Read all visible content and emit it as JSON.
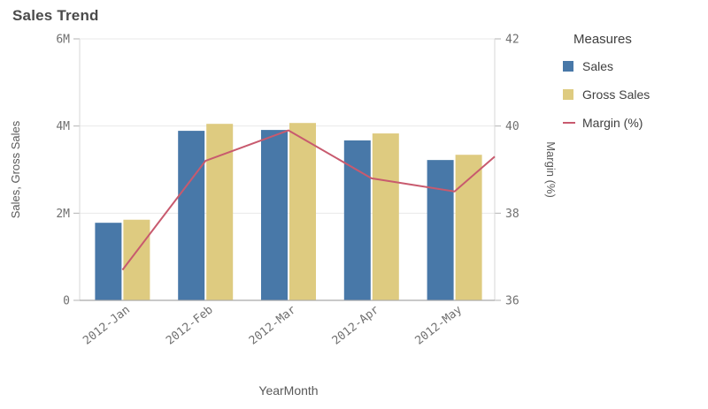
{
  "title": "Sales Trend",
  "legend": {
    "title": "Measures",
    "items": [
      {
        "label": "Sales",
        "color": "#4878a8",
        "swatch": "square"
      },
      {
        "label": "Gross Sales",
        "color": "#decb80",
        "swatch": "square"
      },
      {
        "label": "Margin (%)",
        "color": "#c85a6e",
        "swatch": "line"
      }
    ]
  },
  "chart_data": {
    "type": "combo-bar-line",
    "title": "Sales Trend",
    "categories": [
      "2012-Jan",
      "2012-Feb",
      "2012-Mar",
      "2012-Apr",
      "2012-May"
    ],
    "series": [
      {
        "name": "Sales",
        "type": "bar",
        "axis": "left",
        "color": "#4878a8",
        "values_millions": [
          1.78,
          3.89,
          3.91,
          3.67,
          3.22
        ]
      },
      {
        "name": "Gross Sales",
        "type": "bar",
        "axis": "left",
        "color": "#decb80",
        "values_millions": [
          1.85,
          4.05,
          4.07,
          3.83,
          3.34
        ]
      },
      {
        "name": "Margin (%)",
        "type": "line",
        "axis": "right",
        "color": "#c85a6e",
        "values_percent": [
          36.7,
          39.2,
          39.9,
          38.8,
          38.5
        ],
        "edge_value_percent": 39.3
      }
    ],
    "left_axis": {
      "title": "Sales, Gross Sales",
      "tick_labels": [
        "0",
        "2M",
        "4M",
        "6M"
      ],
      "tick_values": [
        0,
        2,
        4,
        6
      ],
      "range_millions": [
        0,
        6
      ]
    },
    "right_axis": {
      "title": "Margin (%)",
      "tick_labels": [
        "36",
        "38",
        "40",
        "42"
      ],
      "tick_values": [
        36,
        38,
        40,
        42
      ],
      "range_percent": [
        36,
        42
      ]
    },
    "x_axis": {
      "title": "YearMonth"
    },
    "grid": true,
    "legend_position": "right",
    "colors": {
      "grid": "#e9e9e9",
      "axis_line": "#d7d7d7",
      "baseline": "#a9a9a9",
      "tick_mark": "#b3b3b3",
      "tick_text": "#707070",
      "axis_title_text": "#595959"
    }
  }
}
